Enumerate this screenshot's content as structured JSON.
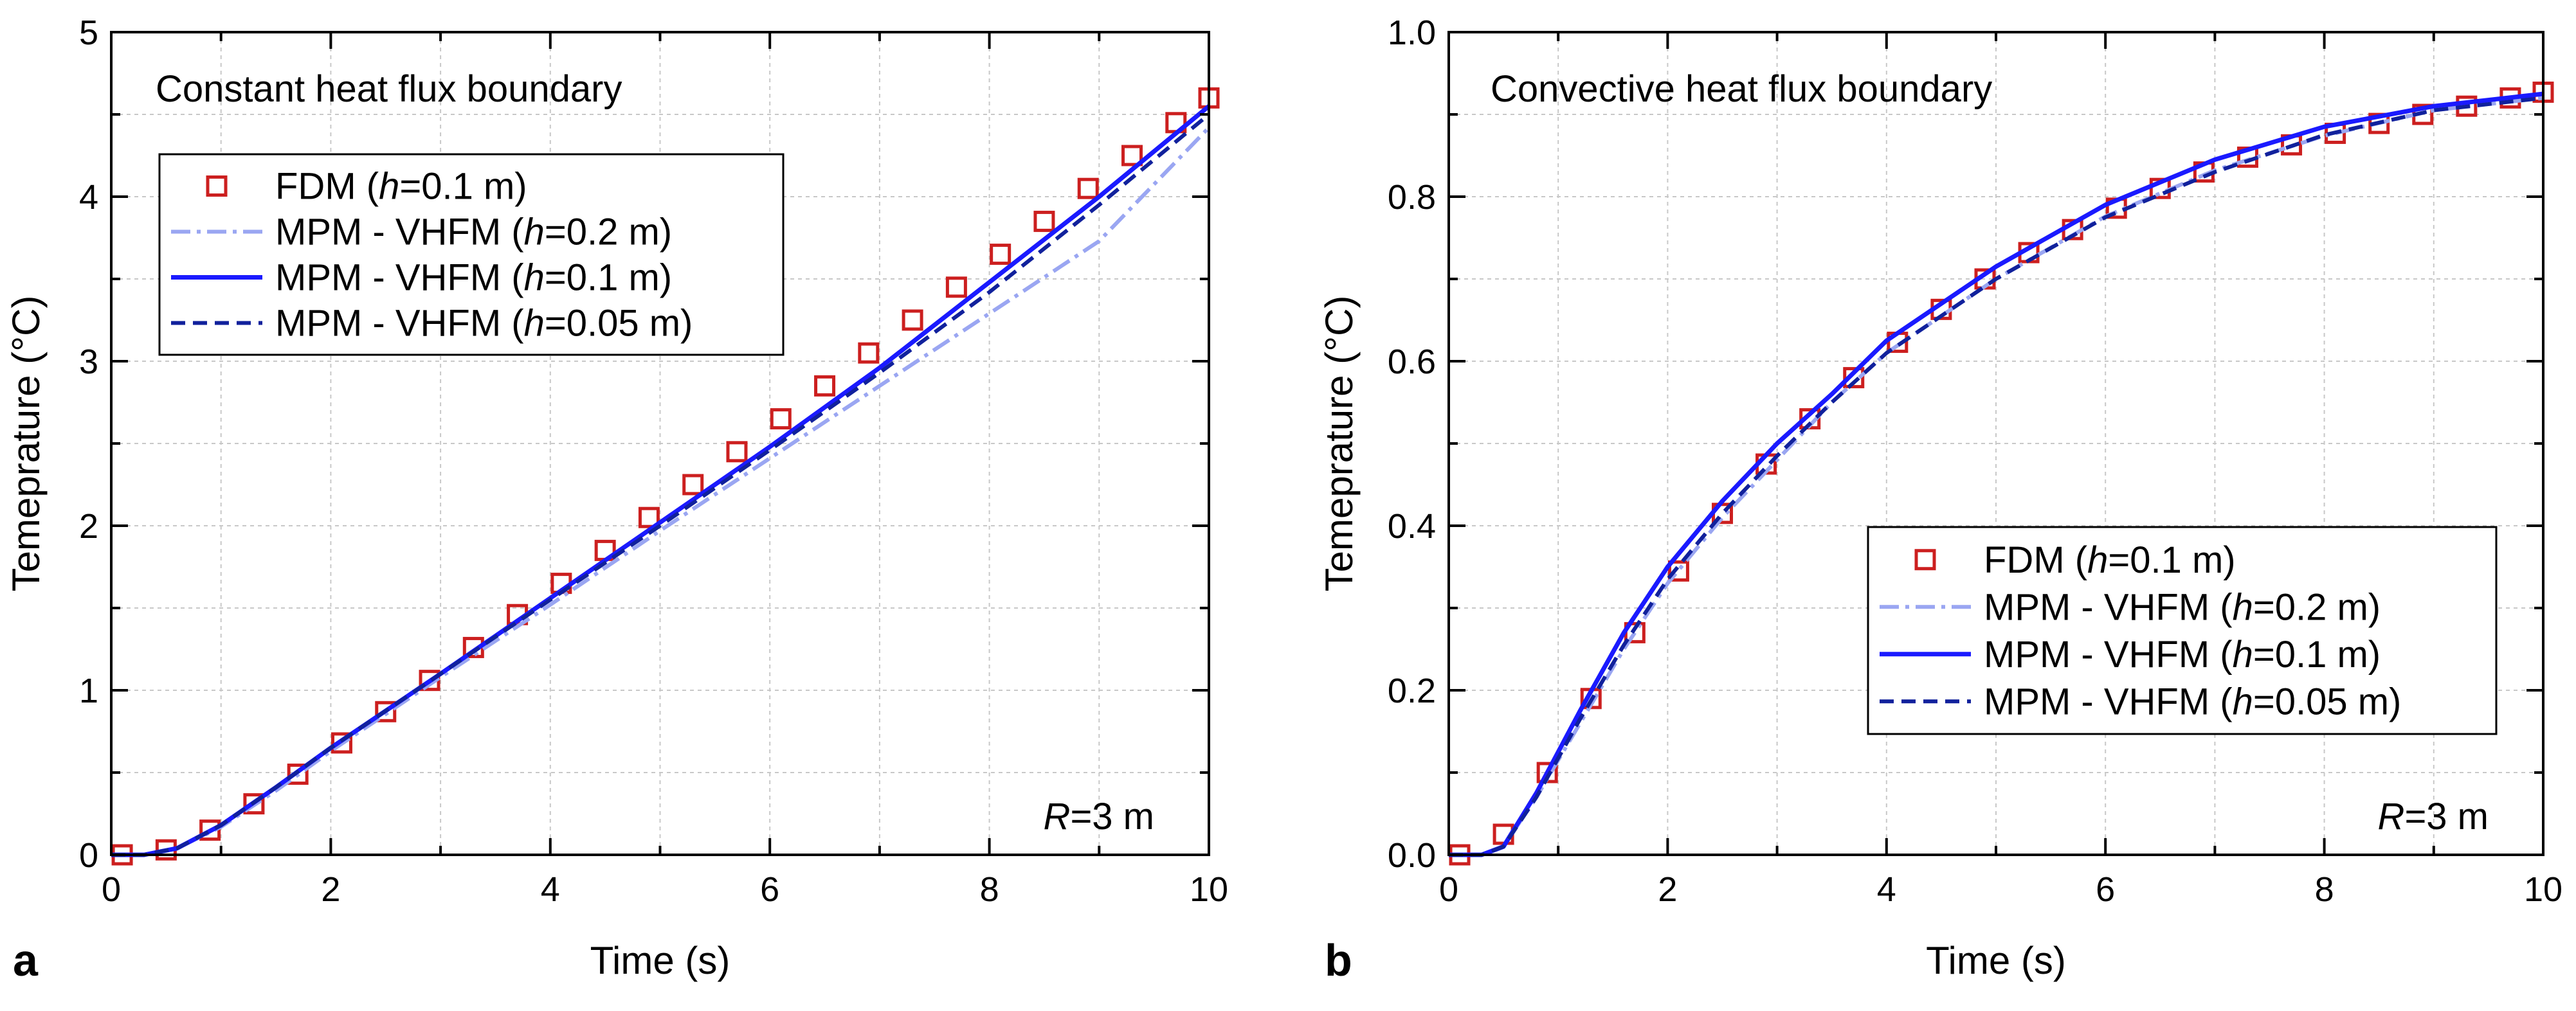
{
  "chart_data": [
    {
      "type": "line",
      "panel_label": "a",
      "annotation": "Constant heat flux boundary",
      "corner_note": {
        "italic": "R",
        "text": "=3 m"
      },
      "xlabel": "Time (s)",
      "ylabel": "Temeprature (°C)",
      "xlim": [
        0,
        10
      ],
      "ylim": [
        0,
        5
      ],
      "xticks": [
        0,
        2,
        4,
        6,
        8,
        10
      ],
      "yticks": [
        0,
        1,
        2,
        3,
        4,
        5
      ],
      "xtick_labels": [
        "0",
        "2",
        "4",
        "6",
        "8",
        "10"
      ],
      "ytick_labels": [
        "0",
        "1",
        "2",
        "3",
        "4",
        "5"
      ],
      "grid": true,
      "legend_position": "upper-left",
      "series": [
        {
          "name": "FDM",
          "label_prefix": "FDM (",
          "label_italic": "h",
          "label_suffix": "=0.1 m)",
          "style": "markers",
          "marker": "square-open",
          "color": "#cc1f1f",
          "x": [
            0.1,
            0.5,
            0.9,
            1.3,
            1.7,
            2.1,
            2.5,
            2.9,
            3.3,
            3.7,
            4.1,
            4.5,
            4.9,
            5.3,
            5.7,
            6.1,
            6.5,
            6.9,
            7.3,
            7.7,
            8.1,
            8.5,
            8.9,
            9.3,
            9.7,
            10.0
          ],
          "y": [
            0.0,
            0.03,
            0.15,
            0.31,
            0.49,
            0.68,
            0.87,
            1.06,
            1.26,
            1.46,
            1.65,
            1.85,
            2.05,
            2.25,
            2.45,
            2.65,
            2.85,
            3.05,
            3.25,
            3.45,
            3.65,
            3.85,
            4.05,
            4.25,
            4.45,
            4.6
          ]
        },
        {
          "name": "MPM - VHFM (h=0.2 m)",
          "label_prefix": "MPM - VHFM (",
          "label_italic": "h",
          "label_suffix": "=0.2 m)",
          "style": "dashdot",
          "color": "#9aa6f2",
          "x": [
            0,
            0.3,
            0.6,
            1.0,
            1.5,
            2.0,
            3.0,
            4.0,
            5.0,
            6.0,
            7.0,
            8.0,
            9.0,
            10.0
          ],
          "y": [
            0.0,
            0.0,
            0.04,
            0.17,
            0.39,
            0.63,
            1.08,
            1.52,
            1.97,
            2.41,
            2.85,
            3.29,
            3.73,
            4.42
          ]
        },
        {
          "name": "MPM - VHFM (h=0.1 m)",
          "label_prefix": "MPM - VHFM (",
          "label_italic": "h",
          "label_suffix": "=0.1 m)",
          "style": "solid",
          "color": "#1a1aff",
          "x": [
            0,
            0.3,
            0.6,
            1.0,
            1.5,
            2.0,
            3.0,
            4.0,
            5.0,
            6.0,
            7.0,
            8.0,
            9.0,
            10.0
          ],
          "y": [
            0.0,
            0.0,
            0.04,
            0.18,
            0.41,
            0.65,
            1.1,
            1.56,
            2.02,
            2.48,
            2.96,
            3.48,
            4.0,
            4.55
          ]
        },
        {
          "name": "MPM - VHFM (h=0.05 m)",
          "label_prefix": "MPM - VHFM (",
          "label_italic": "h",
          "label_suffix": "=0.05 m)",
          "style": "dashed",
          "color": "#11219c",
          "x": [
            0,
            0.3,
            0.6,
            1.0,
            1.5,
            2.0,
            3.0,
            4.0,
            5.0,
            6.0,
            7.0,
            8.0,
            9.0,
            10.0
          ],
          "y": [
            0.0,
            0.0,
            0.04,
            0.18,
            0.41,
            0.65,
            1.1,
            1.55,
            2.0,
            2.46,
            2.93,
            3.42,
            3.95,
            4.5
          ]
        }
      ]
    },
    {
      "type": "line",
      "panel_label": "b",
      "annotation": "Convective heat flux boundary",
      "corner_note": {
        "italic": "R",
        "text": "=3 m"
      },
      "xlabel": "Time (s)",
      "ylabel": "Temeprature (°C)",
      "xlim": [
        0,
        10
      ],
      "ylim": [
        0,
        1.0
      ],
      "xticks": [
        0,
        2,
        4,
        6,
        8,
        10
      ],
      "yticks": [
        0,
        0.2,
        0.4,
        0.6,
        0.8,
        1.0
      ],
      "xtick_labels": [
        "0",
        "2",
        "4",
        "6",
        "8",
        "10"
      ],
      "ytick_labels": [
        "0.0",
        "0.2",
        "0.4",
        "0.6",
        "0.8",
        "1.0"
      ],
      "grid": true,
      "legend_position": "lower-right",
      "series": [
        {
          "name": "FDM",
          "label_prefix": "FDM (",
          "label_italic": "h",
          "label_suffix": "=0.1 m)",
          "style": "markers",
          "marker": "square-open",
          "color": "#cc1f1f",
          "x": [
            0.1,
            0.5,
            0.9,
            1.3,
            1.7,
            2.1,
            2.5,
            2.9,
            3.3,
            3.7,
            4.1,
            4.5,
            4.9,
            5.3,
            5.7,
            6.1,
            6.5,
            6.9,
            7.3,
            7.7,
            8.1,
            8.5,
            8.9,
            9.3,
            9.7,
            10.0
          ],
          "y": [
            0.0,
            0.025,
            0.1,
            0.19,
            0.27,
            0.345,
            0.415,
            0.475,
            0.53,
            0.58,
            0.623,
            0.663,
            0.7,
            0.732,
            0.76,
            0.786,
            0.81,
            0.83,
            0.848,
            0.863,
            0.877,
            0.889,
            0.9,
            0.91,
            0.92,
            0.927
          ]
        },
        {
          "name": "MPM - VHFM (h=0.2 m)",
          "label_prefix": "MPM - VHFM (",
          "label_italic": "h",
          "label_suffix": "=0.2 m)",
          "style": "dashdot",
          "color": "#9aa6f2",
          "x": [
            0,
            0.3,
            0.5,
            0.8,
            1.2,
            1.6,
            2.0,
            2.5,
            3.0,
            3.5,
            4.0,
            5.0,
            6.0,
            7.0,
            8.0,
            9.0,
            10.0
          ],
          "y": [
            0.0,
            0.0,
            0.01,
            0.07,
            0.16,
            0.25,
            0.33,
            0.41,
            0.48,
            0.55,
            0.61,
            0.7,
            0.776,
            0.832,
            0.874,
            0.905,
            0.92
          ]
        },
        {
          "name": "MPM - VHFM (h=0.1 m)",
          "label_prefix": "MPM - VHFM (",
          "label_italic": "h",
          "label_suffix": "=0.1 m)",
          "style": "solid",
          "color": "#1a1aff",
          "x": [
            0,
            0.3,
            0.5,
            0.8,
            1.2,
            1.6,
            2.0,
            2.5,
            3.0,
            3.5,
            4.0,
            5.0,
            6.0,
            7.0,
            8.0,
            9.0,
            10.0
          ],
          "y": [
            0.0,
            0.0,
            0.01,
            0.075,
            0.175,
            0.27,
            0.35,
            0.43,
            0.5,
            0.56,
            0.625,
            0.715,
            0.79,
            0.845,
            0.885,
            0.91,
            0.925
          ]
        },
        {
          "name": "MPM - VHFM (h=0.05 m)",
          "label_prefix": "MPM - VHFM (",
          "label_italic": "h",
          "label_suffix": "=0.05 m)",
          "style": "dashed",
          "color": "#11219c",
          "x": [
            0,
            0.3,
            0.5,
            0.8,
            1.2,
            1.6,
            2.0,
            2.5,
            3.0,
            3.5,
            4.0,
            5.0,
            6.0,
            7.0,
            8.0,
            9.0,
            10.0
          ],
          "y": [
            0.0,
            0.0,
            0.01,
            0.07,
            0.165,
            0.255,
            0.335,
            0.415,
            0.485,
            0.55,
            0.61,
            0.7,
            0.775,
            0.83,
            0.875,
            0.905,
            0.92
          ]
        }
      ]
    }
  ]
}
